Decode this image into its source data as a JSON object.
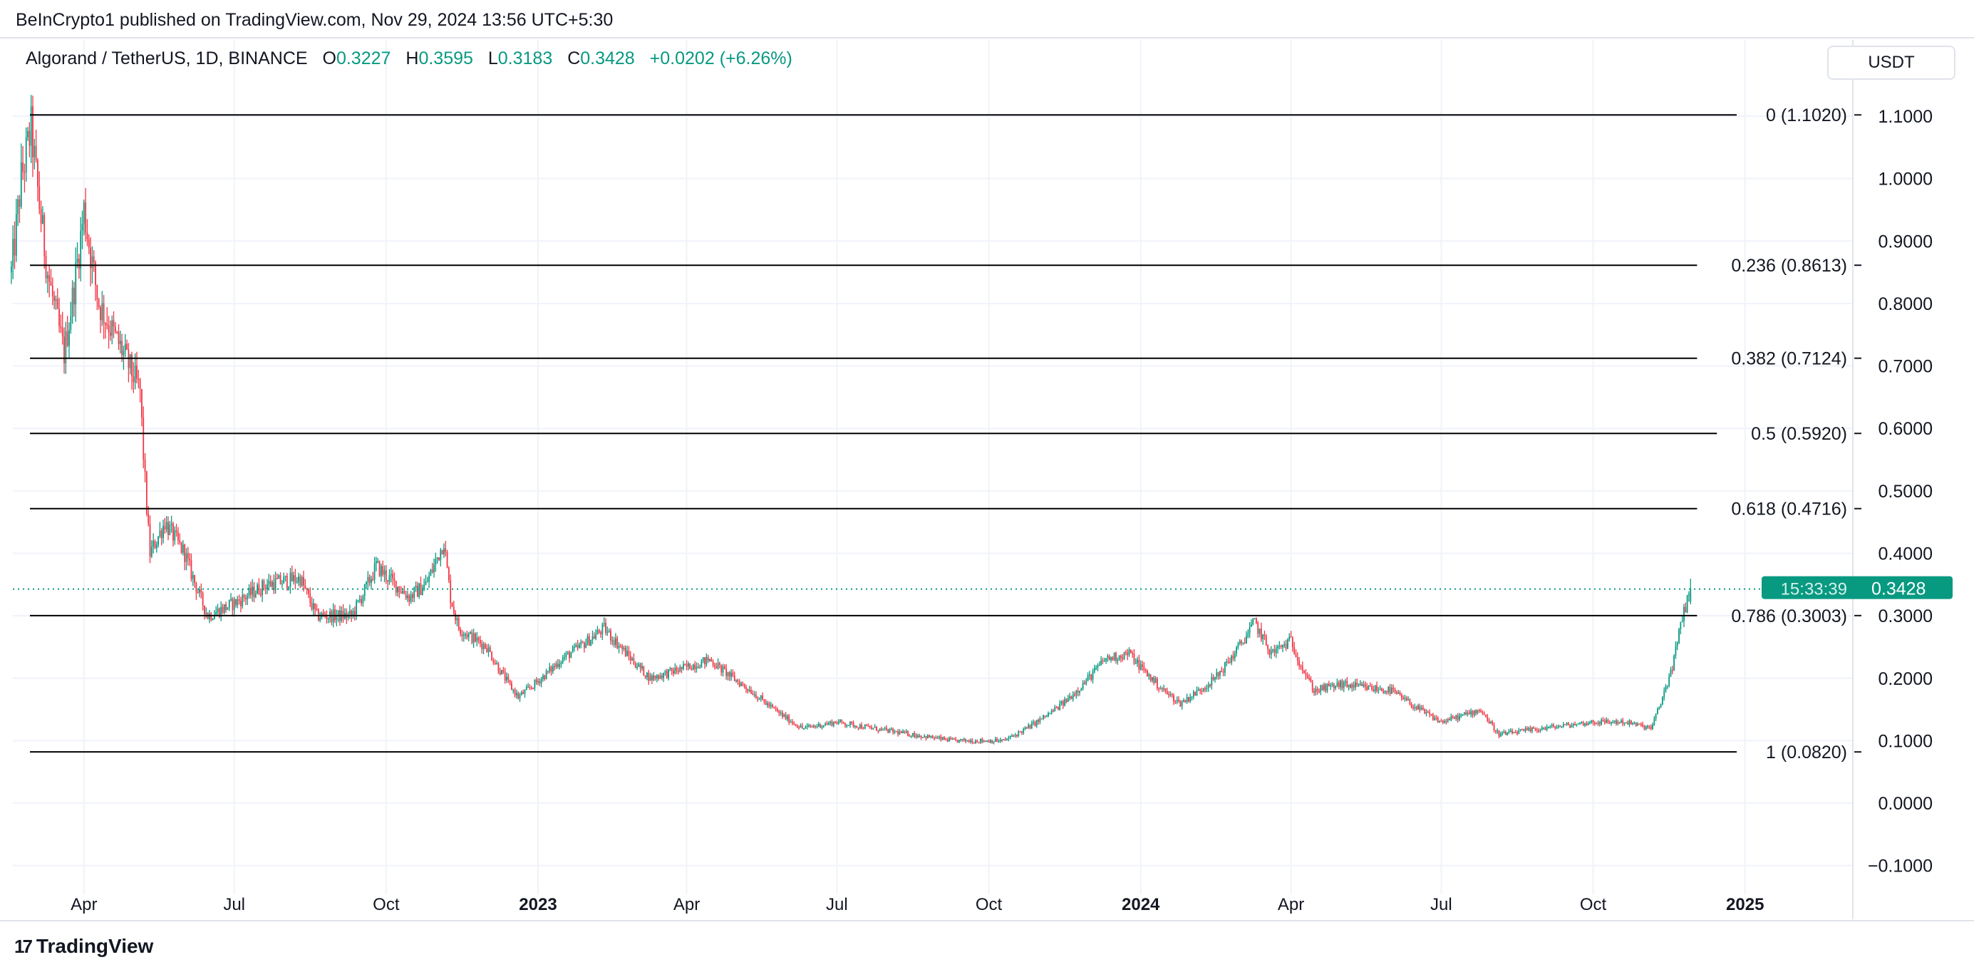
{
  "header": {
    "publisher": "BeInCrypto1 published on TradingView.com, Nov 29, 2024 13:56 UTC+5:30",
    "symbol": "Algorand / TetherUS, 1D, BINANCE",
    "o_label": "O",
    "o": "0.3227",
    "h_label": "H",
    "h": "0.3595",
    "l_label": "L",
    "l": "0.3183",
    "c_label": "C",
    "c": "0.3428",
    "change": "+0.0202 (+6.26%)",
    "currency": "USDT"
  },
  "footer": {
    "brand": "TradingView",
    "logo_text": "17"
  },
  "colors": {
    "up": "#089981",
    "down": "#f23645",
    "grid": "#f0f3fa",
    "fib": "#000000"
  },
  "chart_data": {
    "type": "candlestick",
    "title": "Algorand / TetherUS, 1D, BINANCE",
    "ylim": [
      -0.13,
      1.16
    ],
    "y_ticks": [
      "1.1000",
      "1.0000",
      "0.9000",
      "0.8000",
      "0.7000",
      "0.6000",
      "0.5000",
      "0.4000",
      "0.3000",
      "0.2000",
      "0.1000",
      "0.0000",
      "−0.1000"
    ],
    "y_tick_values": [
      1.1,
      1.0,
      0.9,
      0.8,
      0.7,
      0.6,
      0.5,
      0.4,
      0.3,
      0.2,
      0.1,
      0.0,
      -0.1
    ],
    "x_ticks": [
      {
        "label": "Apr",
        "date": "2022-04-01",
        "bold": false
      },
      {
        "label": "Jul",
        "date": "2022-07-01",
        "bold": false
      },
      {
        "label": "Oct",
        "date": "2022-10-01",
        "bold": false
      },
      {
        "label": "2023",
        "date": "2023-01-01",
        "bold": true
      },
      {
        "label": "Apr",
        "date": "2023-04-01",
        "bold": false
      },
      {
        "label": "Jul",
        "date": "2023-07-01",
        "bold": false
      },
      {
        "label": "Oct",
        "date": "2023-10-01",
        "bold": false
      },
      {
        "label": "2024",
        "date": "2024-01-01",
        "bold": true
      },
      {
        "label": "Apr",
        "date": "2024-04-01",
        "bold": false
      },
      {
        "label": "Jul",
        "date": "2024-07-01",
        "bold": false
      },
      {
        "label": "Oct",
        "date": "2024-10-01",
        "bold": false
      },
      {
        "label": "2025",
        "date": "2025-01-01",
        "bold": true
      }
    ],
    "fib_levels": [
      {
        "label": "0 (1.1020)",
        "value": 1.102
      },
      {
        "label": "0.236 (0.8613)",
        "value": 0.8613
      },
      {
        "label": "0.382 (0.7124)",
        "value": 0.7124
      },
      {
        "label": "0.5 (0.5920)",
        "value": 0.592
      },
      {
        "label": "0.618 (0.4716)",
        "value": 0.4716
      },
      {
        "label": "0.786 (0.3003)",
        "value": 0.3003
      },
      {
        "label": "1 (0.0820)",
        "value": 0.082
      }
    ],
    "last_price": {
      "value": 0.3428,
      "label": "0.3428",
      "countdown": "15:33:39"
    },
    "last_candle": {
      "open": 0.3227,
      "high": 0.3595,
      "low": 0.3183,
      "close": 0.3428
    },
    "close_keypoints": [
      [
        "2022-02-16",
        0.85
      ],
      [
        "2022-02-22",
        1.0
      ],
      [
        "2022-02-28",
        1.08
      ],
      [
        "2022-03-10",
        0.85
      ],
      [
        "2022-03-20",
        0.72
      ],
      [
        "2022-04-01",
        0.95
      ],
      [
        "2022-04-10",
        0.8
      ],
      [
        "2022-04-25",
        0.72
      ],
      [
        "2022-05-05",
        0.66
      ],
      [
        "2022-05-11",
        0.4
      ],
      [
        "2022-05-20",
        0.45
      ],
      [
        "2022-06-01",
        0.4
      ],
      [
        "2022-06-15",
        0.3
      ],
      [
        "2022-07-01",
        0.32
      ],
      [
        "2022-07-20",
        0.35
      ],
      [
        "2022-08-10",
        0.36
      ],
      [
        "2022-08-20",
        0.3
      ],
      [
        "2022-09-10",
        0.3
      ],
      [
        "2022-09-25",
        0.38
      ],
      [
        "2022-10-15",
        0.33
      ],
      [
        "2022-10-25",
        0.35
      ],
      [
        "2022-11-05",
        0.42
      ],
      [
        "2022-11-09",
        0.33
      ],
      [
        "2022-11-14",
        0.28
      ],
      [
        "2022-12-01",
        0.25
      ],
      [
        "2022-12-20",
        0.17
      ],
      [
        "2023-01-15",
        0.23
      ],
      [
        "2023-02-10",
        0.28
      ],
      [
        "2023-02-20",
        0.25
      ],
      [
        "2023-03-10",
        0.2
      ],
      [
        "2023-04-15",
        0.23
      ],
      [
        "2023-05-10",
        0.18
      ],
      [
        "2023-06-10",
        0.12
      ],
      [
        "2023-07-01",
        0.13
      ],
      [
        "2023-08-15",
        0.11
      ],
      [
        "2023-09-10",
        0.1
      ],
      [
        "2023-10-10",
        0.1
      ],
      [
        "2023-11-15",
        0.16
      ],
      [
        "2023-12-10",
        0.23
      ],
      [
        "2023-12-25",
        0.24
      ],
      [
        "2024-01-15",
        0.18
      ],
      [
        "2024-01-25",
        0.16
      ],
      [
        "2024-02-15",
        0.2
      ],
      [
        "2024-03-10",
        0.29
      ],
      [
        "2024-03-20",
        0.24
      ],
      [
        "2024-04-01",
        0.26
      ],
      [
        "2024-04-15",
        0.18
      ],
      [
        "2024-05-01",
        0.19
      ],
      [
        "2024-06-01",
        0.18
      ],
      [
        "2024-07-01",
        0.13
      ],
      [
        "2024-07-25",
        0.15
      ],
      [
        "2024-08-05",
        0.11
      ],
      [
        "2024-09-01",
        0.12
      ],
      [
        "2024-10-01",
        0.13
      ],
      [
        "2024-10-20",
        0.13
      ],
      [
        "2024-11-05",
        0.12
      ],
      [
        "2024-11-12",
        0.17
      ],
      [
        "2024-11-18",
        0.22
      ],
      [
        "2024-11-24",
        0.3
      ],
      [
        "2024-11-29",
        0.3428
      ]
    ]
  }
}
